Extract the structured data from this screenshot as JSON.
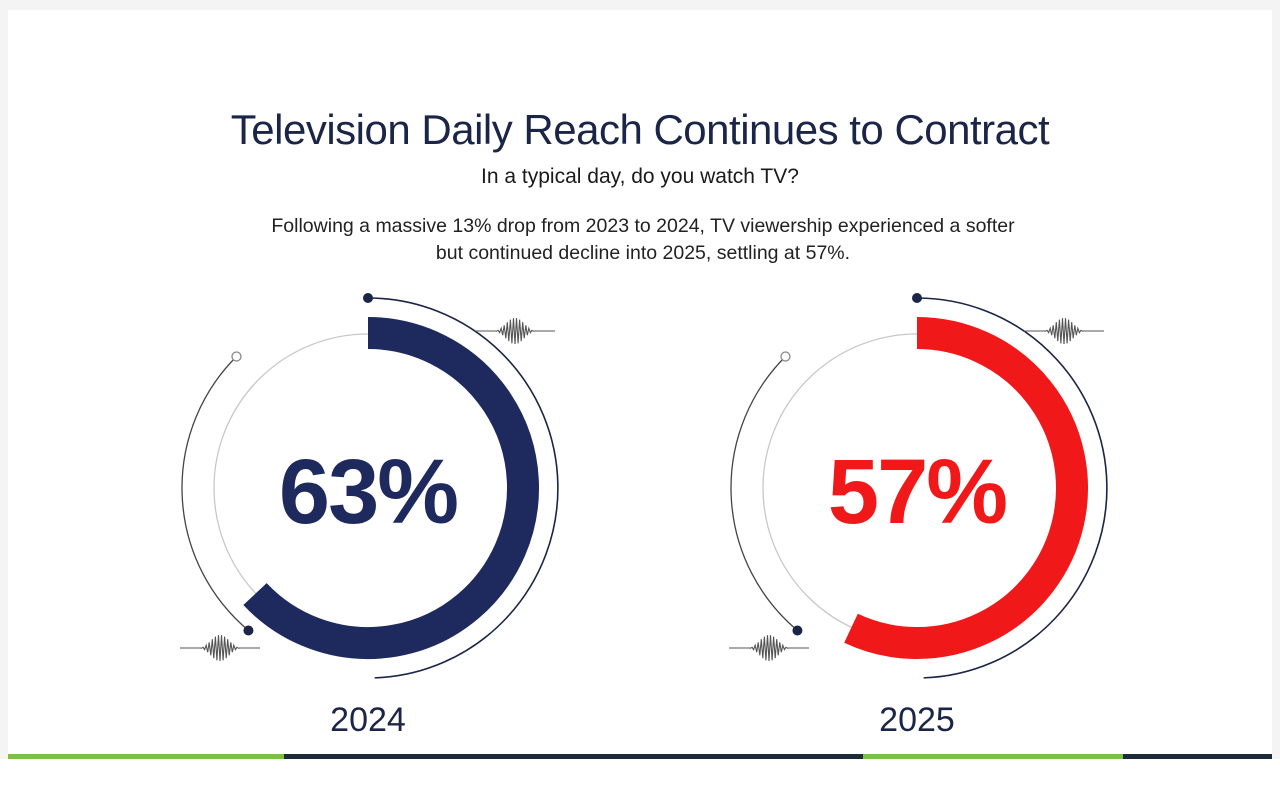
{
  "chart_data": {
    "type": "gauge",
    "title": "Television Daily Reach Continues to Contract",
    "subtitle": "In a typical day, do you watch TV?",
    "description_lines": [
      "Following a massive 13% drop from 2023 to 2024, TV viewership experienced a softer",
      "but continued decline into 2025, settling at 57%."
    ],
    "ylim": [
      0,
      100
    ],
    "series": [
      {
        "label": "2024",
        "value": 63,
        "display": "63%",
        "color": "#1e2a5e"
      },
      {
        "label": "2025",
        "value": 57,
        "display": "57%",
        "color": "#f01818"
      }
    ]
  }
}
